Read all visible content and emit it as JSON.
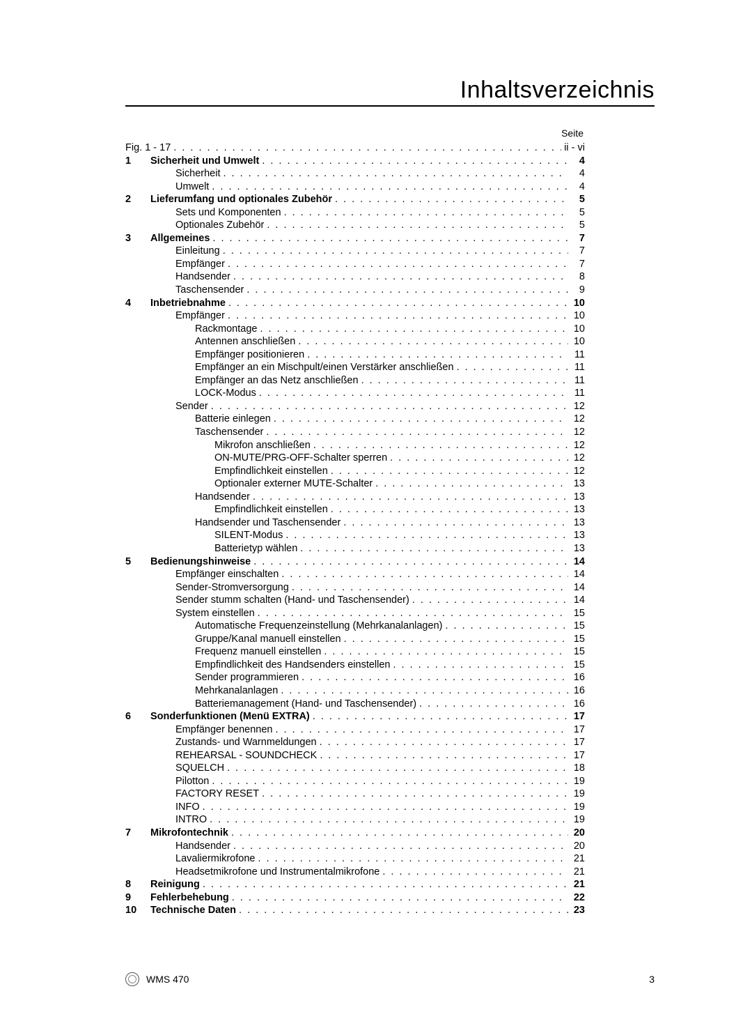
{
  "title": "Inhaltsverzeichnis",
  "page_label": "Seite",
  "footer_model": "WMS 470",
  "footer_page": "3",
  "toc": [
    {
      "num": "",
      "label": "Fig. 1 - 17",
      "page": "ii - vi",
      "bold": false,
      "indent": 0,
      "num_in_label": true
    },
    {
      "num": "1",
      "label": "Sicherheit und Umwelt",
      "page": "4",
      "bold": true,
      "indent": 0
    },
    {
      "num": "",
      "label": "Sicherheit",
      "page": "4",
      "bold": false,
      "indent": 1
    },
    {
      "num": "",
      "label": "Umwelt",
      "page": "4",
      "bold": false,
      "indent": 1
    },
    {
      "num": "2",
      "label": "Lieferumfang und optionales Zubehör",
      "page": "5",
      "bold": true,
      "indent": 0
    },
    {
      "num": "",
      "label": "Sets und Komponenten",
      "page": "5",
      "bold": false,
      "indent": 1
    },
    {
      "num": "",
      "label": "Optionales Zubehör",
      "page": "5",
      "bold": false,
      "indent": 1
    },
    {
      "num": "3",
      "label": "Allgemeines",
      "page": "7",
      "bold": true,
      "indent": 0
    },
    {
      "num": "",
      "label": "Einleitung",
      "page": "7",
      "bold": false,
      "indent": 1
    },
    {
      "num": "",
      "label": "Empfänger",
      "page": "7",
      "bold": false,
      "indent": 1
    },
    {
      "num": "",
      "label": "Handsender",
      "page": "8",
      "bold": false,
      "indent": 1
    },
    {
      "num": "",
      "label": "Taschensender",
      "page": "9",
      "bold": false,
      "indent": 1
    },
    {
      "num": "4",
      "label": "Inbetriebnahme",
      "page": "10",
      "bold": true,
      "indent": 0
    },
    {
      "num": "",
      "label": "Empfänger",
      "page": "10",
      "bold": false,
      "indent": 1
    },
    {
      "num": "",
      "label": "Rackmontage",
      "page": "10",
      "bold": false,
      "indent": 2
    },
    {
      "num": "",
      "label": "Antennen anschließen",
      "page": "10",
      "bold": false,
      "indent": 2
    },
    {
      "num": "",
      "label": "Empfänger positionieren",
      "page": "11",
      "bold": false,
      "indent": 2
    },
    {
      "num": "",
      "label": "Empfänger an ein Mischpult/einen Verstärker anschließen",
      "page": "11",
      "bold": false,
      "indent": 2
    },
    {
      "num": "",
      "label": "Empfänger an das Netz anschließen",
      "page": "11",
      "bold": false,
      "indent": 2
    },
    {
      "num": "",
      "label": "LOCK-Modus",
      "page": "11",
      "bold": false,
      "indent": 2
    },
    {
      "num": "",
      "label": "Sender",
      "page": "12",
      "bold": false,
      "indent": 1
    },
    {
      "num": "",
      "label": "Batterie einlegen",
      "page": "12",
      "bold": false,
      "indent": 2
    },
    {
      "num": "",
      "label": "Taschensender",
      "page": "12",
      "bold": false,
      "indent": 2
    },
    {
      "num": "",
      "label": "Mikrofon anschließen",
      "page": "12",
      "bold": false,
      "indent": 3
    },
    {
      "num": "",
      "label": "ON-MUTE/PRG-OFF-Schalter sperren",
      "page": "12",
      "bold": false,
      "indent": 3
    },
    {
      "num": "",
      "label": "Empfindlichkeit einstellen",
      "page": "12",
      "bold": false,
      "indent": 3
    },
    {
      "num": "",
      "label": "Optionaler externer MUTE-Schalter",
      "page": "13",
      "bold": false,
      "indent": 3
    },
    {
      "num": "",
      "label": "Handsender",
      "page": "13",
      "bold": false,
      "indent": 2
    },
    {
      "num": "",
      "label": "Empfindlichkeit einstellen",
      "page": "13",
      "bold": false,
      "indent": 3
    },
    {
      "num": "",
      "label": "Handsender und Taschensender",
      "page": "13",
      "bold": false,
      "indent": 2
    },
    {
      "num": "",
      "label": "SILENT-Modus",
      "page": "13",
      "bold": false,
      "indent": 3
    },
    {
      "num": "",
      "label": "Batterietyp wählen",
      "page": "13",
      "bold": false,
      "indent": 3
    },
    {
      "num": "5",
      "label": "Bedienungshinweise",
      "page": "14",
      "bold": true,
      "indent": 0
    },
    {
      "num": "",
      "label": "Empfänger einschalten",
      "page": "14",
      "bold": false,
      "indent": 1
    },
    {
      "num": "",
      "label": "Sender-Stromversorgung",
      "page": "14",
      "bold": false,
      "indent": 1
    },
    {
      "num": "",
      "label": "Sender stumm schalten (Hand- und Taschensender)",
      "page": "14",
      "bold": false,
      "indent": 1
    },
    {
      "num": "",
      "label": "System einstellen",
      "page": "15",
      "bold": false,
      "indent": 1
    },
    {
      "num": "",
      "label": "Automatische Frequenzeinstellung (Mehrkanalanlagen)",
      "page": "15",
      "bold": false,
      "indent": 2
    },
    {
      "num": "",
      "label": "Gruppe/Kanal manuell einstellen",
      "page": "15",
      "bold": false,
      "indent": 2
    },
    {
      "num": "",
      "label": "Frequenz manuell einstellen",
      "page": "15",
      "bold": false,
      "indent": 2
    },
    {
      "num": "",
      "label": "Empfindlichkeit des Handsenders einstellen",
      "page": "15",
      "bold": false,
      "indent": 2
    },
    {
      "num": "",
      "label": "Sender programmieren",
      "page": "16",
      "bold": false,
      "indent": 2
    },
    {
      "num": "",
      "label": "Mehrkanalanlagen",
      "page": "16",
      "bold": false,
      "indent": 2
    },
    {
      "num": "",
      "label": "Batteriemanagement (Hand- und Taschensender)",
      "page": "16",
      "bold": false,
      "indent": 2
    },
    {
      "num": "6",
      "label": "Sonderfunktionen (Menü EXTRA)",
      "page": "17",
      "bold": true,
      "indent": 0
    },
    {
      "num": "",
      "label": "Empfänger benennen",
      "page": "17",
      "bold": false,
      "indent": 1
    },
    {
      "num": "",
      "label": "Zustands- und Warnmeldungen",
      "page": "17",
      "bold": false,
      "indent": 1
    },
    {
      "num": "",
      "label": "REHEARSAL - SOUNDCHECK",
      "page": "17",
      "bold": false,
      "indent": 1
    },
    {
      "num": "",
      "label": "SQUELCH",
      "page": "18",
      "bold": false,
      "indent": 1
    },
    {
      "num": "",
      "label": "Pilotton",
      "page": "19",
      "bold": false,
      "indent": 1
    },
    {
      "num": "",
      "label": "FACTORY RESET",
      "page": "19",
      "bold": false,
      "indent": 1
    },
    {
      "num": "",
      "label": "INFO",
      "page": "19",
      "bold": false,
      "indent": 1
    },
    {
      "num": "",
      "label": "INTRO",
      "page": "19",
      "bold": false,
      "indent": 1
    },
    {
      "num": "7",
      "label": "Mikrofontechnik",
      "page": "20",
      "bold": true,
      "indent": 0
    },
    {
      "num": "",
      "label": "Handsender",
      "page": "20",
      "bold": false,
      "indent": 1
    },
    {
      "num": "",
      "label": "Lavaliermikrofone",
      "page": "21",
      "bold": false,
      "indent": 1
    },
    {
      "num": "",
      "label": "Headsetmikrofone und Instrumentalmikrofone",
      "page": "21",
      "bold": false,
      "indent": 1
    },
    {
      "num": "8",
      "label": "Reinigung",
      "page": "21",
      "bold": true,
      "indent": 0
    },
    {
      "num": "9",
      "label": "Fehlerbehebung",
      "page": "22",
      "bold": true,
      "indent": 0
    },
    {
      "num": "10",
      "label": "Technische Daten",
      "page": "23",
      "bold": true,
      "indent": 0
    }
  ]
}
